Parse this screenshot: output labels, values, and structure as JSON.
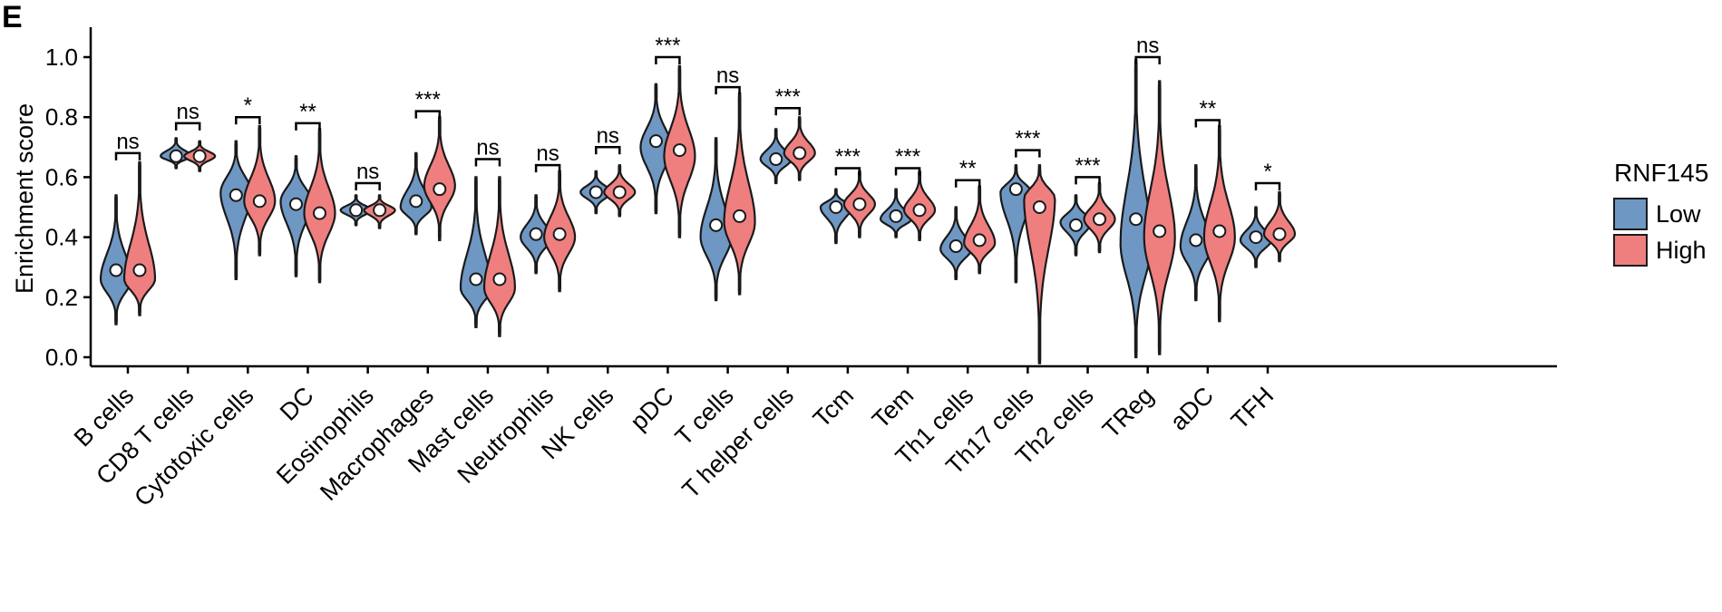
{
  "panel_label": "E",
  "colors": {
    "low": "#6f97c3",
    "high": "#ef7f7f"
  },
  "chart_data": {
    "type": "violin",
    "title": "",
    "xlabel": "",
    "ylabel": "Enrichment score",
    "ylim": [
      -0.03,
      1.08
    ],
    "yticks": [
      "0.0",
      "0.2",
      "0.4",
      "0.6",
      "0.8",
      "1.0"
    ],
    "grid": false,
    "legend": {
      "title": "RNF145",
      "entries": [
        "Low",
        "High"
      ],
      "position": "right"
    },
    "categories": [
      "B cells",
      "CD8 T cells",
      "Cytotoxic cells",
      "DC",
      "Eosinophils",
      "Macrophages",
      "Mast cells",
      "Neutrophils",
      "NK cells",
      "pDC",
      "T cells",
      "T helper cells",
      "Tcm",
      "Tem",
      "Th1 cells",
      "Th17 cells",
      "Th2 cells",
      "TReg",
      "aDC",
      "TFH"
    ],
    "series": [
      {
        "name": "Low",
        "median": [
          0.29,
          0.67,
          0.54,
          0.51,
          0.49,
          0.52,
          0.26,
          0.41,
          0.55,
          0.72,
          0.44,
          0.66,
          0.5,
          0.47,
          0.37,
          0.56,
          0.44,
          0.46,
          0.39,
          0.4
        ],
        "min": [
          0.11,
          0.63,
          0.26,
          0.27,
          0.44,
          0.41,
          0.1,
          0.28,
          0.48,
          0.48,
          0.19,
          0.58,
          0.38,
          0.4,
          0.26,
          0.25,
          0.34,
          0.0,
          0.19,
          0.3
        ],
        "max": [
          0.54,
          0.73,
          0.72,
          0.67,
          0.54,
          0.68,
          0.6,
          0.54,
          0.62,
          0.91,
          0.73,
          0.76,
          0.56,
          0.56,
          0.5,
          0.64,
          0.54,
          0.99,
          0.64,
          0.5
        ],
        "mode": [
          0.26,
          0.67,
          0.55,
          0.52,
          0.49,
          0.5,
          0.23,
          0.4,
          0.55,
          0.7,
          0.4,
          0.66,
          0.5,
          0.46,
          0.36,
          0.55,
          0.45,
          0.38,
          0.37,
          0.39
        ]
      },
      {
        "name": "High",
        "median": [
          0.29,
          0.67,
          0.52,
          0.48,
          0.49,
          0.56,
          0.26,
          0.41,
          0.55,
          0.69,
          0.47,
          0.68,
          0.51,
          0.49,
          0.39,
          0.5,
          0.46,
          0.42,
          0.42,
          0.41
        ],
        "min": [
          0.14,
          0.62,
          0.34,
          0.25,
          0.43,
          0.39,
          0.07,
          0.22,
          0.47,
          0.4,
          0.21,
          0.59,
          0.4,
          0.39,
          0.28,
          -0.02,
          0.35,
          0.01,
          0.12,
          0.32
        ],
        "max": [
          0.65,
          0.72,
          0.77,
          0.76,
          0.54,
          0.8,
          0.6,
          0.62,
          0.64,
          0.97,
          0.88,
          0.8,
          0.62,
          0.62,
          0.57,
          0.64,
          0.58,
          0.92,
          0.77,
          0.55
        ],
        "mode": [
          0.26,
          0.67,
          0.52,
          0.48,
          0.49,
          0.57,
          0.23,
          0.4,
          0.55,
          0.67,
          0.45,
          0.68,
          0.51,
          0.49,
          0.38,
          0.53,
          0.46,
          0.4,
          0.4,
          0.41
        ]
      }
    ],
    "significance": [
      "ns",
      "ns",
      "*",
      "**",
      "ns",
      "***",
      "ns",
      "ns",
      "ns",
      "***",
      "ns",
      "***",
      "***",
      "***",
      "**",
      "***",
      "***",
      "ns",
      "**",
      "*"
    ],
    "bracket_y": [
      0.68,
      0.78,
      0.8,
      0.78,
      0.58,
      0.82,
      0.66,
      0.64,
      0.7,
      1.0,
      0.9,
      0.83,
      0.63,
      0.63,
      0.59,
      0.69,
      0.6,
      1.0,
      0.79,
      0.58
    ]
  }
}
